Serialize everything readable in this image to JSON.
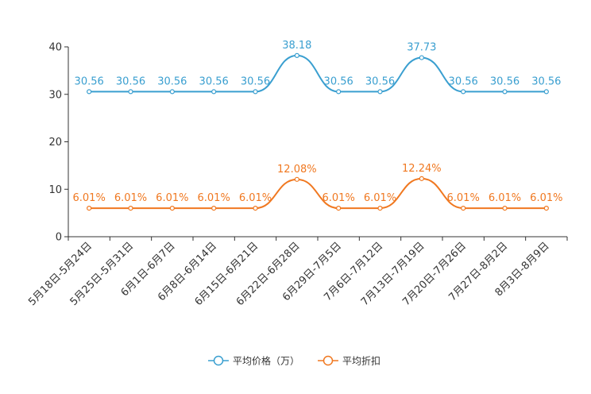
{
  "chart_data": {
    "type": "line",
    "title": "",
    "xlabel": "",
    "ylabel": "",
    "ylim": [
      0,
      40
    ],
    "yticks": [
      0,
      10,
      20,
      30,
      40
    ],
    "grid": false,
    "legend_position": "bottom-center",
    "categories": [
      "5月18日-5月24日",
      "5月25日-5月31日",
      "6月1日-6月7日",
      "6月8日-6月14日",
      "6月15日-6月21日",
      "6月22日-6月28日",
      "6月29日-7月5日",
      "7月6日-7月12日",
      "7月13日-7月19日",
      "7月20日-7月26日",
      "7月27日-8月2日",
      "8月3日-8月9日"
    ],
    "series": [
      {
        "name": "平均价格（万）",
        "color": "#3a9fd0",
        "values": [
          30.56,
          30.56,
          30.56,
          30.56,
          30.56,
          38.18,
          30.56,
          30.56,
          37.73,
          30.56,
          30.56,
          30.56
        ],
        "labels": [
          "30.56",
          "30.56",
          "30.56",
          "30.56",
          "30.56",
          "38.18",
          "30.56",
          "30.56",
          "37.73",
          "30.56",
          "30.56",
          "30.56"
        ]
      },
      {
        "name": "平均折扣",
        "color": "#f07820",
        "values": [
          6.01,
          6.01,
          6.01,
          6.01,
          6.01,
          12.08,
          6.01,
          6.01,
          12.24,
          6.01,
          6.01,
          6.01
        ],
        "labels": [
          "6.01%",
          "6.01%",
          "6.01%",
          "6.01%",
          "6.01%",
          "12.08%",
          "6.01%",
          "6.01%",
          "12.24%",
          "6.01%",
          "6.01%",
          "6.01%"
        ]
      }
    ]
  }
}
